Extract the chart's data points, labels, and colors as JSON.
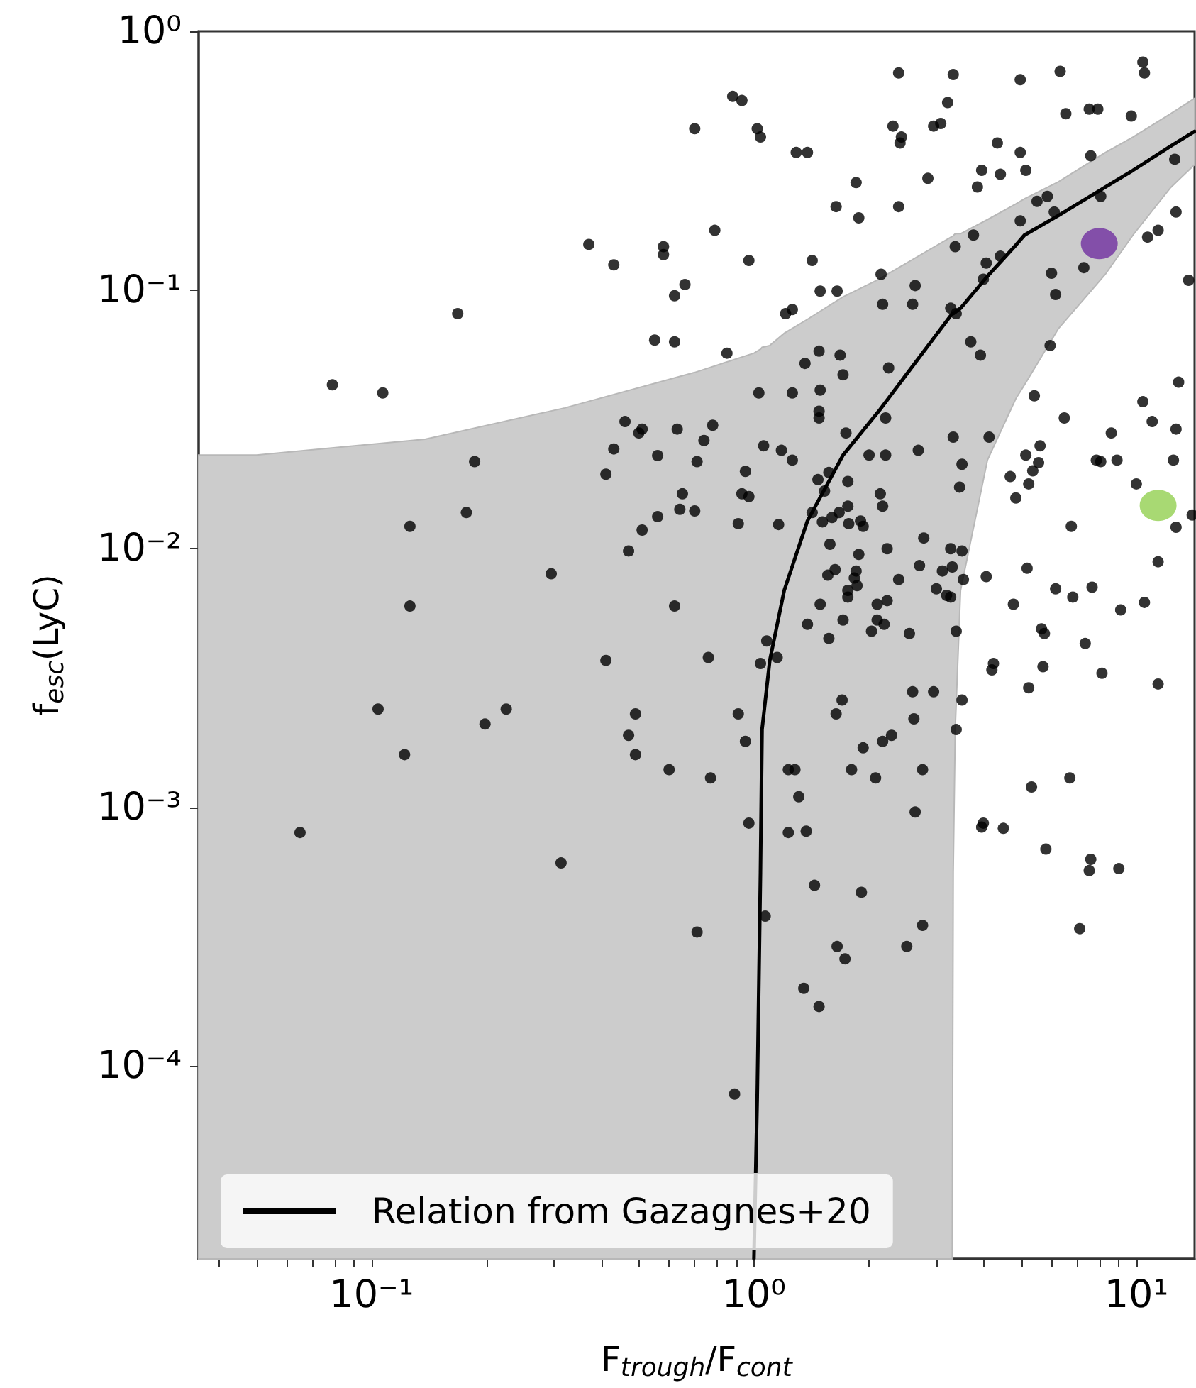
{
  "chart_data": {
    "type": "scatter",
    "xlabel": "F$_{trough}$/F$_{cont}$",
    "ylabel": "f$_{esc}$(LyC)",
    "log": "xy",
    "grid": false,
    "legend": "bottom left",
    "marker": "circle",
    "xlim": [
      0.0353,
      14.2
    ],
    "ylim": [
      1.8e-05,
      1
    ],
    "xticks": [
      {
        "value": 0.04,
        "label": null
      },
      {
        "value": 0.05,
        "label": null
      },
      {
        "value": 0.06,
        "label": null
      },
      {
        "value": 0.07,
        "label": null
      },
      {
        "value": 0.08,
        "label": null
      },
      {
        "value": 0.09,
        "label": null
      },
      {
        "value": 0.1,
        "label": "10⁻¹"
      },
      {
        "value": 0.2,
        "label": null
      },
      {
        "value": 0.3,
        "label": null
      },
      {
        "value": 0.4,
        "label": null
      },
      {
        "value": 0.5,
        "label": null
      },
      {
        "value": 0.6,
        "label": null
      },
      {
        "value": 0.7,
        "label": null
      },
      {
        "value": 0.8,
        "label": null
      },
      {
        "value": 0.9,
        "label": null
      },
      {
        "value": 1,
        "label": "10⁰"
      },
      {
        "value": 2,
        "label": null
      },
      {
        "value": 3,
        "label": null
      },
      {
        "value": 4,
        "label": null
      },
      {
        "value": 5,
        "label": null
      },
      {
        "value": 6,
        "label": null
      },
      {
        "value": 7,
        "label": null
      },
      {
        "value": 8,
        "label": null
      },
      {
        "value": 9,
        "label": null
      },
      {
        "value": 10,
        "label": "10¹"
      }
    ],
    "yticks": [
      {
        "value": 0.0001,
        "label": "10⁻⁴"
      },
      {
        "value": 0.001,
        "label": "10⁻³"
      },
      {
        "value": 0.01,
        "label": "10⁻²"
      },
      {
        "value": 0.1,
        "label": "10⁻¹"
      },
      {
        "value": 1,
        "label": "10⁰"
      }
    ],
    "series": [
      {
        "type": "line",
        "name": "Relation from Gazagnes+20",
        "color": "#000000",
        "marker": "none",
        "x": [
          0.0353,
          0.05,
          0.138,
          0.32,
          0.7,
          1.0,
          1.02,
          1.04,
          1.05,
          1.1,
          1.2,
          1.38,
          1.71,
          2.12,
          3.3,
          3.32,
          3.36,
          3.47,
          4.08,
          4.84,
          5.1,
          6.26,
          8.3,
          9.8,
          12.3,
          14.2
        ],
        "values": [
          null,
          null,
          null,
          null,
          null,
          1.8e-05,
          7.6e-05,
          0.00056,
          0.002,
          0.0037,
          0.0069,
          0.0128,
          0.023,
          0.034,
          0.081,
          0.081,
          0.082,
          0.085,
          0.113,
          0.149,
          0.163,
          0.194,
          0.25,
          0.29,
          0.36,
          0.41
        ],
        "upper": [
          0.023,
          0.023,
          0.0265,
          0.035,
          0.048,
          0.057,
          0.058,
          0.059,
          0.06,
          0.061,
          0.068,
          0.077,
          0.094,
          0.11,
          0.161,
          0.162,
          0.165,
          0.165,
          0.187,
          0.215,
          0.225,
          0.262,
          0.34,
          0.39,
          0.48,
          0.55
        ],
        "lower": [
          1.8e-05,
          1.8e-05,
          1.8e-05,
          1.8e-05,
          1.8e-05,
          1.8e-05,
          1.8e-05,
          1.8e-05,
          1.8e-05,
          1.8e-05,
          1.8e-05,
          1.8e-05,
          1.8e-05,
          1.8e-05,
          1.8e-05,
          0.00056,
          0.002,
          0.0069,
          0.022,
          0.038,
          0.043,
          0.071,
          0.115,
          0.163,
          0.249,
          0.305
        ]
      },
      {
        "color": "#000000",
        "x": [
          0.7,
          0.37,
          0.43,
          0.58,
          0.58,
          0.66,
          0.62,
          0.168,
          0.55,
          0.62,
          0.079,
          0.107,
          0.46,
          0.5,
          0.51,
          0.63,
          0.43,
          0.56,
          0.74,
          0.186,
          0.71,
          0.126,
          0.177,
          0.126,
          0.295,
          0.41,
          0.65,
          0.64,
          0.7,
          0.56,
          0.51,
          0.47,
          0.62,
          0.41,
          0.104,
          0.225,
          0.198,
          0.122,
          0.065,
          0.313,
          0.49,
          0.47,
          0.49,
          0.6,
          0.88,
          0.93,
          1.02,
          1.04,
          1.29,
          1.38,
          1.85,
          1.64,
          1.88,
          2.39,
          2.31,
          2.43,
          2.41,
          2.95,
          3.08,
          3.21,
          3.32,
          2.85,
          2.39,
          0.79,
          0.97,
          1.42,
          1.49,
          1.65,
          1.21,
          1.26,
          2.15,
          2.17,
          2.6,
          2.64,
          3.27,
          3.38,
          3.36,
          3.75,
          4.05,
          3.98,
          4.41,
          3.84,
          3.94,
          4.33,
          4.41,
          4.97,
          5.14,
          4.97,
          5.5,
          5.85,
          6.1,
          4.97,
          6.32,
          6.54,
          7.53,
          7.93,
          9.7,
          10.4,
          10.5,
          7.6,
          8.07,
          12.6,
          12.7,
          10.7,
          11.4,
          13.7,
          6.0,
          6.15,
          7.29,
          5.95,
          0.85,
          1.48,
          1.36,
          1.68,
          1.71,
          2.25,
          1.03,
          1.26,
          1.49,
          1.48,
          1.48,
          2.21,
          1.74,
          0.78,
          1.06,
          1.18,
          1.26,
          2.0,
          2.21,
          2.69,
          3.32,
          4.12,
          5.41,
          6.48,
          5.6,
          5.14,
          7.86,
          8.6,
          8.9,
          10.4,
          11.0,
          12.7,
          12.9,
          12.5,
          3.69,
          3.91,
          5.55,
          0.95,
          0.93,
          0.97,
          0.91,
          1.16,
          1.47,
          1.57,
          1.53,
          1.76,
          1.42,
          1.51,
          1.6,
          1.67,
          1.76,
          1.77,
          1.9,
          1.93,
          2.14,
          2.17,
          3.5,
          3.45,
          2.78,
          2.23,
          1.58,
          1.88,
          1.63,
          1.56,
          1.85,
          1.83,
          1.86,
          1.76,
          1.76,
          2.39,
          2.71,
          3.27,
          3.5,
          3.11,
          3.3,
          3.53,
          3.0,
          3.19,
          3.27,
          1.49,
          2.1,
          2.23,
          2.1,
          2.19,
          1.71,
          1.38,
          1.57,
          2.03,
          2.55,
          3.38,
          1.08,
          0.76,
          1.04,
          1.15,
          1.7,
          1.64,
          2.6,
          2.95,
          3.5,
          2.62,
          3.38,
          0.91,
          0.95,
          1.93,
          2.17,
          2.29,
          0.77,
          1.23,
          1.28,
          1.8,
          2.08,
          2.76,
          1.31,
          0.97,
          1.23,
          1.37,
          2.64,
          4.05,
          5.36,
          4.68,
          5.23,
          4.84,
          8.07,
          10.0,
          14.0,
          12.7,
          6.76,
          11.4,
          5.18,
          6.15,
          6.82,
          7.66,
          10.5,
          9.1,
          4.77,
          5.65,
          5.75,
          7.35,
          4.23,
          4.19,
          5.7,
          8.13,
          11.4,
          5.23,
          6.7,
          5.32,
          3.98,
          3.94,
          4.49,
          5.8,
          7.6,
          9.0,
          7.53,
          0.71,
          1.07,
          1.44,
          1.91,
          1.65,
          1.73,
          1.35,
          1.48,
          2.51,
          2.76,
          0.89,
          7.11
        ],
        "values": [
          0.42,
          0.15,
          0.125,
          0.147,
          0.137,
          0.105,
          0.095,
          0.081,
          0.064,
          0.063,
          0.043,
          0.04,
          0.031,
          0.028,
          0.029,
          0.029,
          0.0243,
          0.0229,
          0.0262,
          0.0217,
          0.0217,
          0.0122,
          0.0138,
          0.006,
          0.008,
          0.0194,
          0.0163,
          0.0142,
          0.014,
          0.0133,
          0.0118,
          0.0098,
          0.006,
          0.0037,
          0.0024,
          0.0024,
          0.0021,
          0.0016,
          0.0008,
          0.00061,
          0.0023,
          0.0019,
          0.0016,
          0.0014,
          0.56,
          0.54,
          0.42,
          0.39,
          0.34,
          0.34,
          0.26,
          0.21,
          0.19,
          0.69,
          0.43,
          0.39,
          0.37,
          0.43,
          0.44,
          0.53,
          0.68,
          0.27,
          0.21,
          0.17,
          0.13,
          0.13,
          0.099,
          0.099,
          0.081,
          0.084,
          0.115,
          0.088,
          0.088,
          0.104,
          0.085,
          0.081,
          0.147,
          0.163,
          0.127,
          0.11,
          0.135,
          0.25,
          0.29,
          0.37,
          0.28,
          0.34,
          0.29,
          0.185,
          0.22,
          0.23,
          0.2,
          0.65,
          0.7,
          0.48,
          0.5,
          0.5,
          0.47,
          0.76,
          0.69,
          0.33,
          0.23,
          0.32,
          0.2,
          0.16,
          0.17,
          0.109,
          0.116,
          0.096,
          0.122,
          0.061,
          0.057,
          0.058,
          0.052,
          0.056,
          0.047,
          0.05,
          0.04,
          0.04,
          0.041,
          0.034,
          0.032,
          0.032,
          0.028,
          0.03,
          0.025,
          0.024,
          0.022,
          0.023,
          0.023,
          0.024,
          0.027,
          0.027,
          0.039,
          0.032,
          0.025,
          0.023,
          0.022,
          0.028,
          0.022,
          0.037,
          0.031,
          0.029,
          0.044,
          0.022,
          0.063,
          0.056,
          0.0215,
          0.0199,
          0.0163,
          0.0159,
          0.0125,
          0.0124,
          0.0185,
          0.0197,
          0.0167,
          0.0182,
          0.0138,
          0.0127,
          0.0132,
          0.0138,
          0.0146,
          0.0125,
          0.0128,
          0.0122,
          0.0163,
          0.0146,
          0.0212,
          0.0173,
          0.011,
          0.01,
          0.0104,
          0.0095,
          0.0083,
          0.0079,
          0.0082,
          0.0077,
          0.0072,
          0.0069,
          0.0065,
          0.0076,
          0.0086,
          0.01,
          0.0098,
          0.0082,
          0.0085,
          0.0076,
          0.007,
          0.0066,
          0.0065,
          0.0061,
          0.0061,
          0.0063,
          0.0053,
          0.0051,
          0.0053,
          0.0051,
          0.0045,
          0.0048,
          0.0047,
          0.0048,
          0.0044,
          0.0038,
          0.0036,
          0.0038,
          0.0026,
          0.0023,
          0.0028,
          0.0028,
          0.0026,
          0.0022,
          0.002,
          0.0023,
          0.0018,
          0.0017,
          0.0018,
          0.0019,
          0.0013,
          0.0014,
          0.0014,
          0.0014,
          0.0013,
          0.0014,
          0.0011,
          0.00087,
          0.0008,
          0.00081,
          0.00096,
          0.0078,
          0.02,
          0.019,
          0.0178,
          0.0157,
          0.0217,
          0.0178,
          0.0135,
          0.0121,
          0.0122,
          0.0089,
          0.0084,
          0.007,
          0.0065,
          0.0071,
          0.0062,
          0.0058,
          0.0061,
          0.0049,
          0.0047,
          0.0043,
          0.0036,
          0.0034,
          0.0035,
          0.0033,
          0.003,
          0.0029,
          0.0013,
          0.0012,
          0.00087,
          0.00084,
          0.00083,
          0.00069,
          0.00063,
          0.00058,
          0.00057,
          0.00033,
          0.00038,
          0.0005,
          0.00047,
          0.00029,
          0.00026,
          0.0002,
          0.00017,
          0.00029,
          0.00035,
          7.8e-05,
          0.00034
        ]
      },
      {
        "color": "#7030a0",
        "x": [
          8.0
        ],
        "values": [
          0.151
        ]
      },
      {
        "color": "#92d050",
        "x": [
          11.4
        ],
        "values": [
          0.0147
        ]
      }
    ]
  }
}
